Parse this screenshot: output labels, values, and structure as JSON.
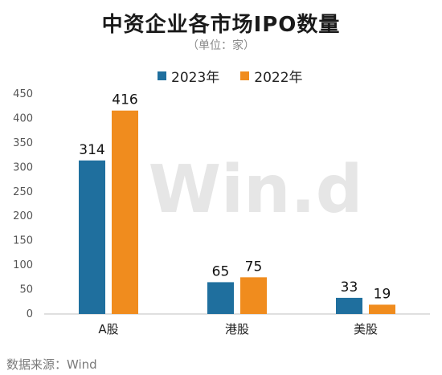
{
  "title": "中资企业各市场IPO数量",
  "subtitle": "（单位：家）",
  "source": "数据来源：Wind",
  "watermark": "Win.d",
  "chart_data": {
    "type": "bar",
    "title": "中资企业各市场IPO数量",
    "unit": "（单位：家）",
    "categories": [
      "A股",
      "港股",
      "美股"
    ],
    "series": [
      {
        "name": "2023年",
        "color": "#1f6f9e",
        "values": [
          314,
          65,
          33
        ]
      },
      {
        "name": "2022年",
        "color": "#f08c1e",
        "values": [
          416,
          75,
          19
        ]
      }
    ],
    "ylim": [
      0,
      450
    ],
    "yticks": [
      0,
      50,
      100,
      150,
      200,
      250,
      300,
      350,
      400,
      450
    ],
    "grid": false,
    "legend": "top-center"
  }
}
